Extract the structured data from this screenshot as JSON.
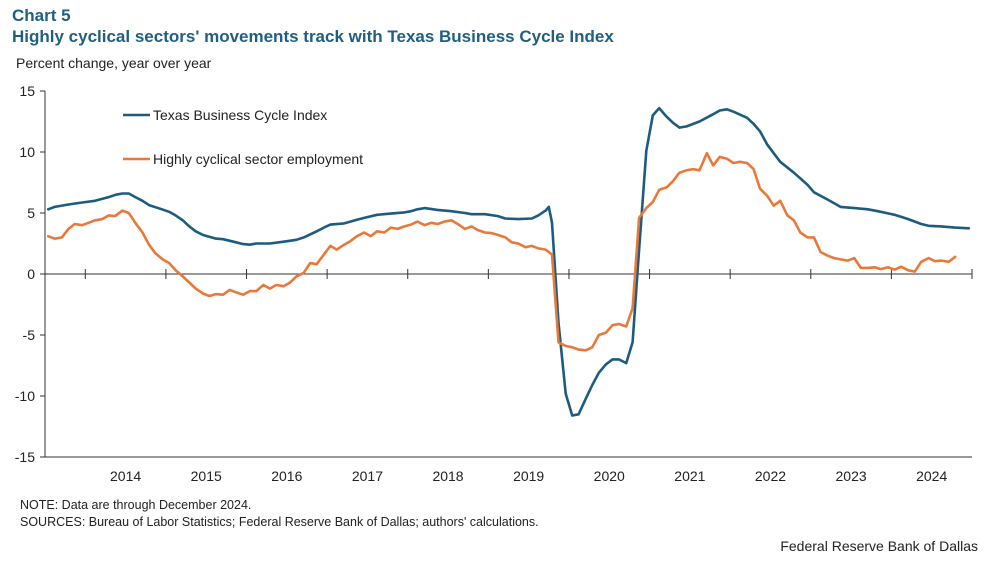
{
  "header": {
    "chart_number": "Chart 5",
    "title": "Highly cyclical sectors' movements track with Texas Business Cycle Index",
    "unit_label": "Percent change, year over year"
  },
  "footer": {
    "note": "NOTE: Data are through December 2024.",
    "sources": "SOURCES: Bureau of Labor Statistics; Federal Reserve Bank of Dallas; authors' calculations.",
    "credit": "Federal Reserve Bank of Dallas"
  },
  "chart_data": {
    "type": "line",
    "title": "Highly cyclical sectors' movements track with Texas Business Cycle Index",
    "ylabel": "Percent change, year over year",
    "ylim": [
      -15,
      15
    ],
    "yticks": [
      15,
      10,
      5,
      0,
      -5,
      -10,
      -15
    ],
    "ytick_labels": [
      "15",
      "10",
      "5",
      "0",
      "-5",
      "-10",
      "-15"
    ],
    "xlim": [
      2013.5,
      2025.0
    ],
    "xticks": [
      "2014",
      "2015",
      "2016",
      "2017",
      "2018",
      "2019",
      "2020",
      "2021",
      "2022",
      "2023",
      "2024"
    ],
    "grid": false,
    "legend_position": "top-left",
    "series": [
      {
        "name": "Texas Business Cycle Index",
        "color": "#1d5c7e",
        "points": [
          [
            2013.54,
            5.3
          ],
          [
            2013.62,
            5.5
          ],
          [
            2013.79,
            5.7
          ],
          [
            2013.95,
            5.85
          ],
          [
            2014.12,
            6.0
          ],
          [
            2014.29,
            6.3
          ],
          [
            2014.38,
            6.5
          ],
          [
            2014.46,
            6.6
          ],
          [
            2014.54,
            6.6
          ],
          [
            2014.62,
            6.3
          ],
          [
            2014.71,
            6.0
          ],
          [
            2014.79,
            5.65
          ],
          [
            2014.95,
            5.3
          ],
          [
            2015.04,
            5.1
          ],
          [
            2015.12,
            4.8
          ],
          [
            2015.21,
            4.4
          ],
          [
            2015.29,
            3.9
          ],
          [
            2015.37,
            3.5
          ],
          [
            2015.46,
            3.2
          ],
          [
            2015.62,
            2.9
          ],
          [
            2015.71,
            2.85
          ],
          [
            2015.87,
            2.6
          ],
          [
            2015.96,
            2.45
          ],
          [
            2016.04,
            2.4
          ],
          [
            2016.12,
            2.5
          ],
          [
            2016.29,
            2.5
          ],
          [
            2016.46,
            2.65
          ],
          [
            2016.62,
            2.8
          ],
          [
            2016.71,
            3.0
          ],
          [
            2016.87,
            3.5
          ],
          [
            2016.96,
            3.8
          ],
          [
            2017.04,
            4.05
          ],
          [
            2017.21,
            4.15
          ],
          [
            2017.37,
            4.45
          ],
          [
            2017.46,
            4.6
          ],
          [
            2017.62,
            4.85
          ],
          [
            2017.79,
            4.95
          ],
          [
            2017.96,
            5.05
          ],
          [
            2018.04,
            5.15
          ],
          [
            2018.12,
            5.3
          ],
          [
            2018.21,
            5.4
          ],
          [
            2018.37,
            5.25
          ],
          [
            2018.54,
            5.15
          ],
          [
            2018.71,
            5.0
          ],
          [
            2018.79,
            4.9
          ],
          [
            2018.96,
            4.9
          ],
          [
            2019.12,
            4.75
          ],
          [
            2019.21,
            4.55
          ],
          [
            2019.37,
            4.5
          ],
          [
            2019.54,
            4.55
          ],
          [
            2019.62,
            4.8
          ],
          [
            2019.71,
            5.2
          ],
          [
            2019.75,
            5.5
          ],
          [
            2019.79,
            4.2
          ],
          [
            2019.87,
            -4.0
          ],
          [
            2019.96,
            -9.8
          ],
          [
            2020.04,
            -11.6
          ],
          [
            2020.12,
            -11.5
          ],
          [
            2020.21,
            -10.2
          ],
          [
            2020.29,
            -9.1
          ],
          [
            2020.37,
            -8.1
          ],
          [
            2020.46,
            -7.4
          ],
          [
            2020.54,
            -7.0
          ],
          [
            2020.62,
            -7.0
          ],
          [
            2020.71,
            -7.3
          ],
          [
            2020.79,
            -5.6
          ],
          [
            2020.87,
            2.0
          ],
          [
            2020.96,
            10.1
          ],
          [
            2021.04,
            13.0
          ],
          [
            2021.12,
            13.6
          ],
          [
            2021.21,
            12.9
          ],
          [
            2021.29,
            12.4
          ],
          [
            2021.37,
            12.0
          ],
          [
            2021.46,
            12.1
          ],
          [
            2021.62,
            12.5
          ],
          [
            2021.79,
            13.1
          ],
          [
            2021.87,
            13.4
          ],
          [
            2021.96,
            13.5
          ],
          [
            2022.04,
            13.3
          ],
          [
            2022.21,
            12.8
          ],
          [
            2022.29,
            12.3
          ],
          [
            2022.37,
            11.7
          ],
          [
            2022.46,
            10.6
          ],
          [
            2022.54,
            9.9
          ],
          [
            2022.62,
            9.2
          ],
          [
            2022.79,
            8.3
          ],
          [
            2022.96,
            7.3
          ],
          [
            2023.04,
            6.7
          ],
          [
            2023.21,
            6.1
          ],
          [
            2023.29,
            5.8
          ],
          [
            2023.37,
            5.5
          ],
          [
            2023.54,
            5.4
          ],
          [
            2023.71,
            5.3
          ],
          [
            2023.87,
            5.1
          ],
          [
            2024.04,
            4.85
          ],
          [
            2024.21,
            4.5
          ],
          [
            2024.37,
            4.1
          ],
          [
            2024.46,
            3.95
          ],
          [
            2024.62,
            3.9
          ],
          [
            2024.79,
            3.8
          ],
          [
            2024.96,
            3.75
          ]
        ]
      },
      {
        "name": "Highly cyclical sector employment",
        "color": "#e8793b",
        "points": [
          [
            2013.54,
            3.1
          ],
          [
            2013.62,
            2.9
          ],
          [
            2013.71,
            3.0
          ],
          [
            2013.79,
            3.7
          ],
          [
            2013.87,
            4.1
          ],
          [
            2013.96,
            4.0
          ],
          [
            2014.04,
            4.2
          ],
          [
            2014.12,
            4.4
          ],
          [
            2014.21,
            4.5
          ],
          [
            2014.29,
            4.8
          ],
          [
            2014.37,
            4.75
          ],
          [
            2014.46,
            5.2
          ],
          [
            2014.54,
            5.0
          ],
          [
            2014.62,
            4.2
          ],
          [
            2014.71,
            3.4
          ],
          [
            2014.79,
            2.4
          ],
          [
            2014.87,
            1.7
          ],
          [
            2014.96,
            1.2
          ],
          [
            2015.04,
            0.9
          ],
          [
            2015.12,
            0.3
          ],
          [
            2015.21,
            -0.2
          ],
          [
            2015.29,
            -0.7
          ],
          [
            2015.37,
            -1.2
          ],
          [
            2015.46,
            -1.6
          ],
          [
            2015.54,
            -1.8
          ],
          [
            2015.62,
            -1.65
          ],
          [
            2015.71,
            -1.7
          ],
          [
            2015.79,
            -1.3
          ],
          [
            2015.87,
            -1.5
          ],
          [
            2015.96,
            -1.7
          ],
          [
            2016.04,
            -1.4
          ],
          [
            2016.12,
            -1.4
          ],
          [
            2016.21,
            -0.9
          ],
          [
            2016.29,
            -1.2
          ],
          [
            2016.37,
            -0.9
          ],
          [
            2016.46,
            -1.0
          ],
          [
            2016.54,
            -0.7
          ],
          [
            2016.62,
            -0.2
          ],
          [
            2016.71,
            0.1
          ],
          [
            2016.79,
            0.9
          ],
          [
            2016.87,
            0.8
          ],
          [
            2016.96,
            1.6
          ],
          [
            2017.04,
            2.3
          ],
          [
            2017.12,
            2.0
          ],
          [
            2017.21,
            2.4
          ],
          [
            2017.29,
            2.7
          ],
          [
            2017.37,
            3.1
          ],
          [
            2017.46,
            3.4
          ],
          [
            2017.54,
            3.1
          ],
          [
            2017.62,
            3.5
          ],
          [
            2017.71,
            3.4
          ],
          [
            2017.79,
            3.8
          ],
          [
            2017.87,
            3.7
          ],
          [
            2017.96,
            3.9
          ],
          [
            2018.04,
            4.05
          ],
          [
            2018.12,
            4.3
          ],
          [
            2018.21,
            4.0
          ],
          [
            2018.29,
            4.2
          ],
          [
            2018.37,
            4.1
          ],
          [
            2018.46,
            4.3
          ],
          [
            2018.54,
            4.4
          ],
          [
            2018.62,
            4.1
          ],
          [
            2018.71,
            3.7
          ],
          [
            2018.79,
            3.9
          ],
          [
            2018.87,
            3.6
          ],
          [
            2018.96,
            3.4
          ],
          [
            2019.04,
            3.35
          ],
          [
            2019.12,
            3.2
          ],
          [
            2019.21,
            3.0
          ],
          [
            2019.29,
            2.6
          ],
          [
            2019.37,
            2.5
          ],
          [
            2019.46,
            2.2
          ],
          [
            2019.54,
            2.3
          ],
          [
            2019.62,
            2.1
          ],
          [
            2019.71,
            2.0
          ],
          [
            2019.79,
            1.6
          ],
          [
            2019.87,
            -5.6
          ],
          [
            2019.96,
            -5.9
          ],
          [
            2020.04,
            -6.0
          ],
          [
            2020.12,
            -6.2
          ],
          [
            2020.21,
            -6.25
          ],
          [
            2020.29,
            -6.0
          ],
          [
            2020.37,
            -5.0
          ],
          [
            2020.46,
            -4.8
          ],
          [
            2020.54,
            -4.2
          ],
          [
            2020.62,
            -4.1
          ],
          [
            2020.71,
            -4.3
          ],
          [
            2020.79,
            -2.8
          ],
          [
            2020.87,
            4.6
          ],
          [
            2020.96,
            5.4
          ],
          [
            2021.04,
            5.9
          ],
          [
            2021.12,
            6.9
          ],
          [
            2021.21,
            7.1
          ],
          [
            2021.29,
            7.6
          ],
          [
            2021.37,
            8.3
          ],
          [
            2021.46,
            8.5
          ],
          [
            2021.54,
            8.6
          ],
          [
            2021.62,
            8.5
          ],
          [
            2021.71,
            9.9
          ],
          [
            2021.79,
            8.9
          ],
          [
            2021.87,
            9.6
          ],
          [
            2021.96,
            9.45
          ],
          [
            2022.04,
            9.1
          ],
          [
            2022.12,
            9.2
          ],
          [
            2022.21,
            9.1
          ],
          [
            2022.29,
            8.6
          ],
          [
            2022.37,
            7.0
          ],
          [
            2022.46,
            6.4
          ],
          [
            2022.54,
            5.6
          ],
          [
            2022.62,
            6.0
          ],
          [
            2022.71,
            4.8
          ],
          [
            2022.79,
            4.4
          ],
          [
            2022.87,
            3.4
          ],
          [
            2022.96,
            3.0
          ],
          [
            2023.04,
            3.0
          ],
          [
            2023.12,
            1.8
          ],
          [
            2023.21,
            1.5
          ],
          [
            2023.29,
            1.3
          ],
          [
            2023.37,
            1.2
          ],
          [
            2023.46,
            1.1
          ],
          [
            2023.54,
            1.3
          ],
          [
            2023.62,
            0.5
          ],
          [
            2023.71,
            0.5
          ],
          [
            2023.79,
            0.55
          ],
          [
            2023.87,
            0.4
          ],
          [
            2023.96,
            0.55
          ],
          [
            2024.04,
            0.35
          ],
          [
            2024.12,
            0.6
          ],
          [
            2024.21,
            0.3
          ],
          [
            2024.29,
            0.2
          ],
          [
            2024.37,
            1.0
          ],
          [
            2024.46,
            1.3
          ],
          [
            2024.54,
            1.05
          ],
          [
            2024.62,
            1.1
          ],
          [
            2024.71,
            1.0
          ],
          [
            2024.79,
            1.4
          ]
        ]
      }
    ]
  }
}
